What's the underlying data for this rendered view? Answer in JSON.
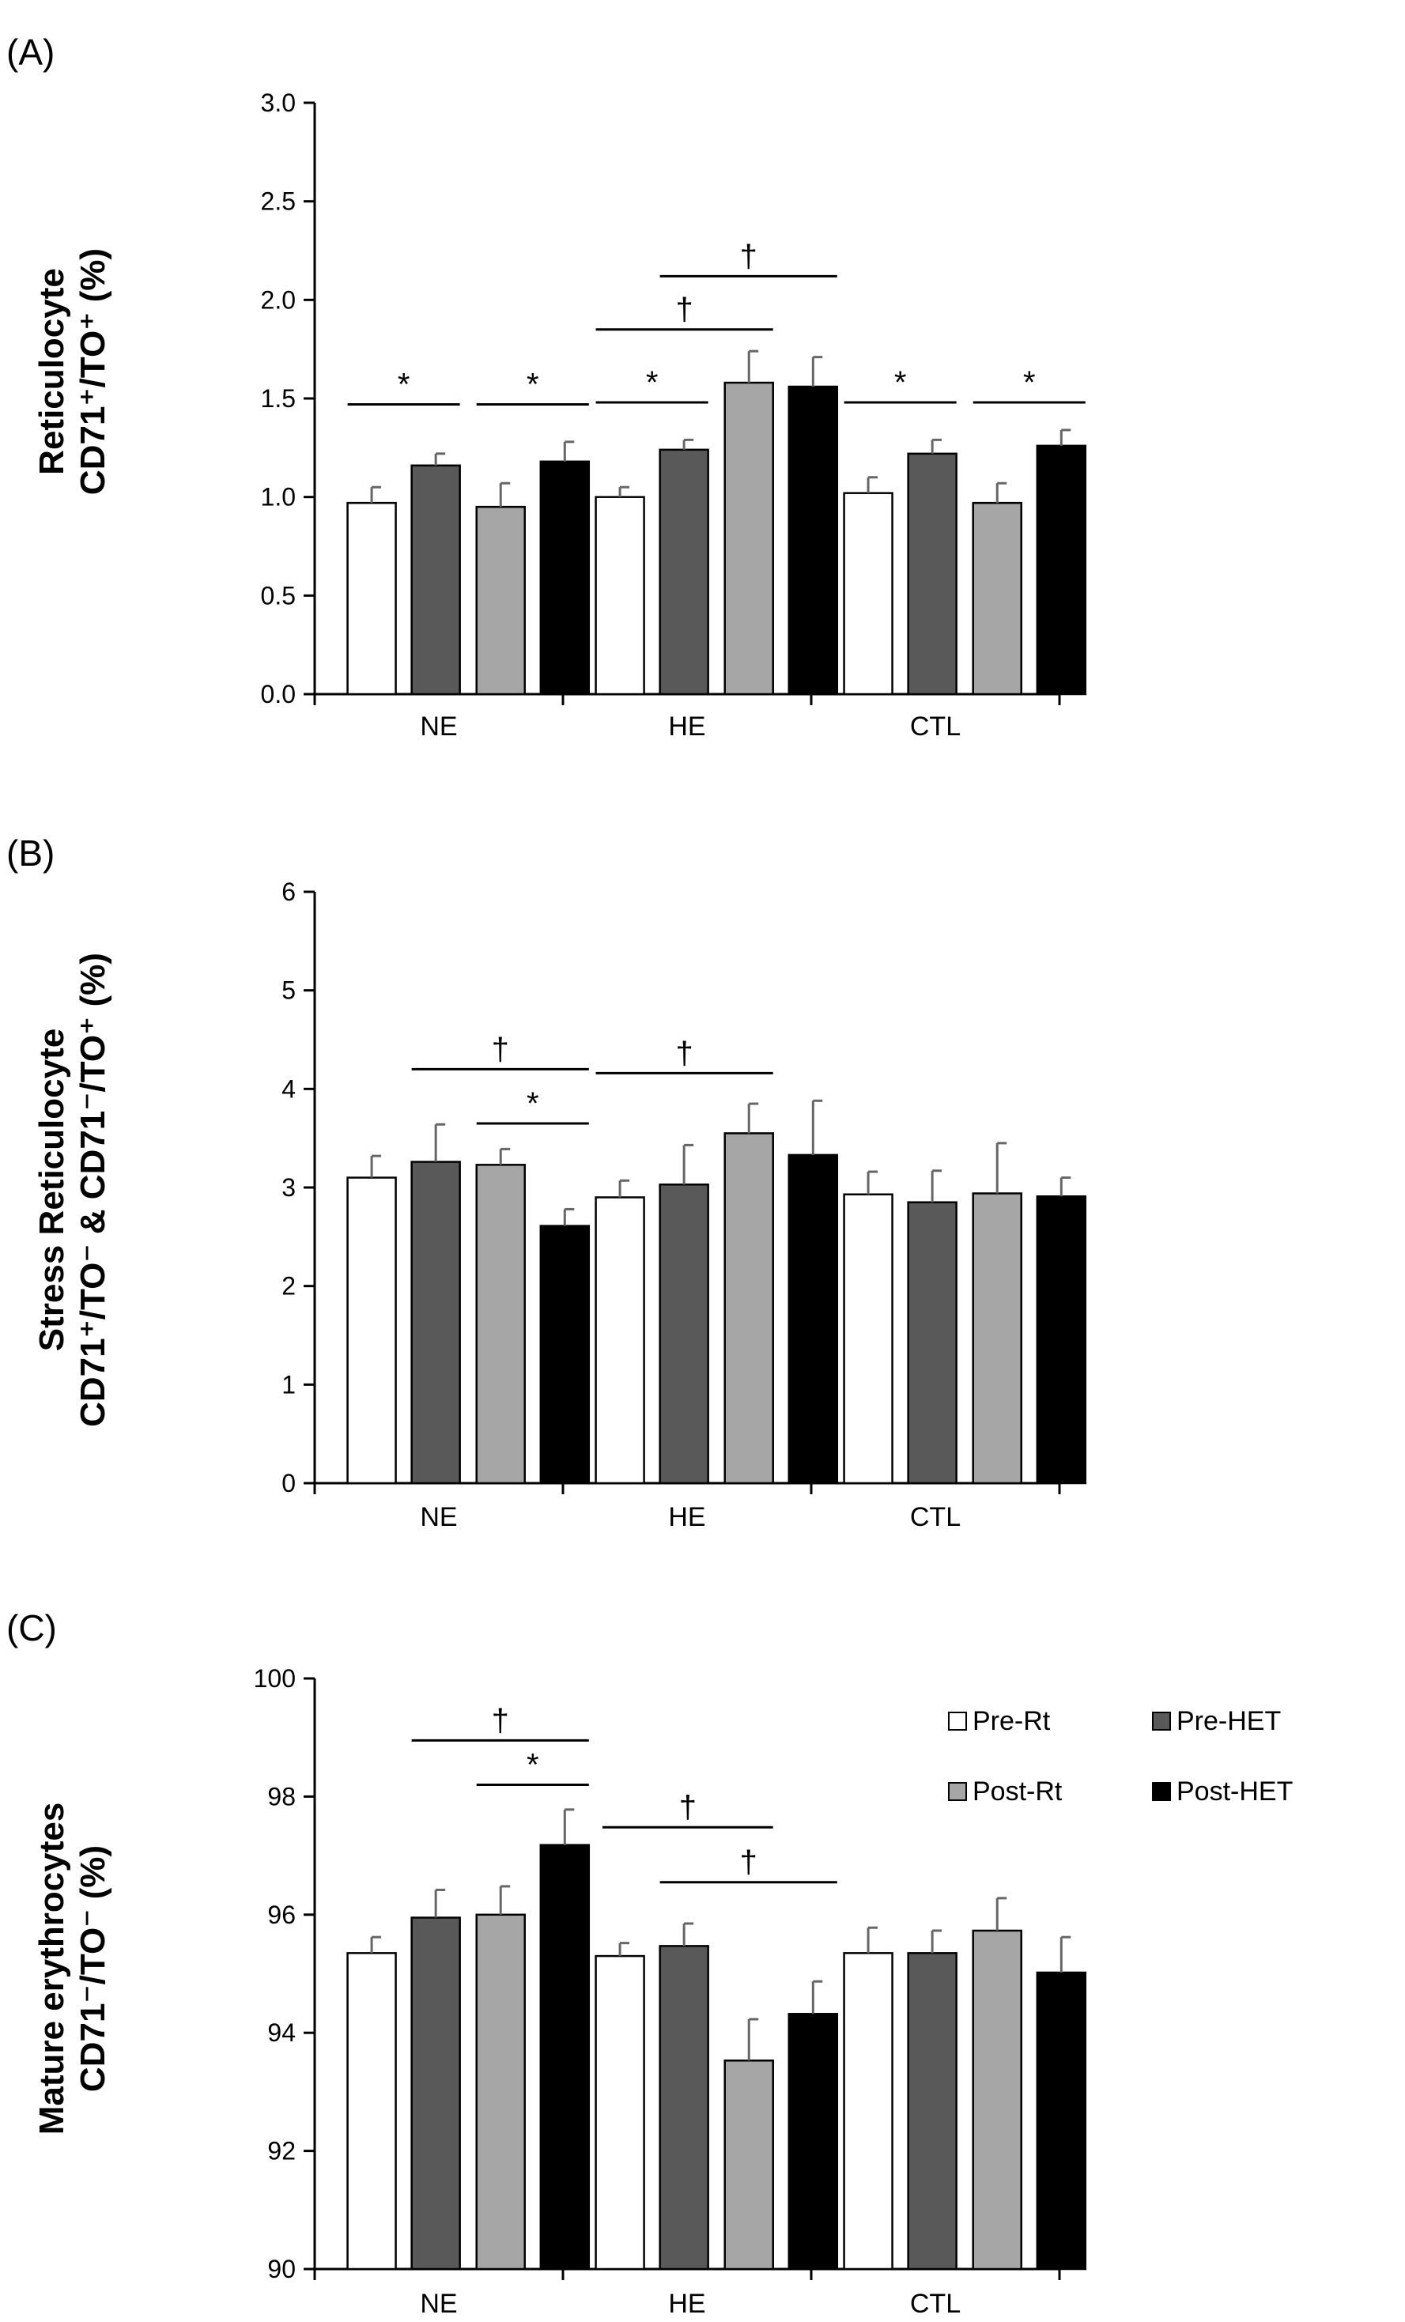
{
  "colors": {
    "Pre-Rt": "#ffffff",
    "Pre-HET": "#595959",
    "Post-Rt": "#a6a6a6",
    "Post-HET": "#000000",
    "axis": "#000000"
  },
  "chart_data": [
    {
      "type": "bar",
      "panel_label": "(A)",
      "ylabel_line1": "Reticulocyte",
      "ylabel_line2": "CD71⁺/TO⁺ (%)",
      "categories": [
        "NE",
        "HE",
        "CTL"
      ],
      "ylim": [
        0,
        3
      ],
      "yticks": [
        "0.0",
        "0.5",
        "1.0",
        "1.5",
        "2.0",
        "2.5",
        "3.0"
      ],
      "series": [
        {
          "name": "Pre-Rt",
          "values": [
            0.97,
            1.0,
            1.02
          ],
          "errors": [
            0.08,
            0.05,
            0.08
          ]
        },
        {
          "name": "Pre-HET",
          "values": [
            1.16,
            1.24,
            1.22
          ],
          "errors": [
            0.06,
            0.05,
            0.07
          ]
        },
        {
          "name": "Post-Rt",
          "values": [
            0.95,
            1.58,
            0.97
          ],
          "errors": [
            0.12,
            0.16,
            0.1
          ]
        },
        {
          "name": "Post-HET",
          "values": [
            1.18,
            1.56,
            1.26
          ],
          "errors": [
            0.1,
            0.15,
            0.08
          ]
        }
      ],
      "annotations": [
        {
          "symbol": "*",
          "category": 0,
          "from": 0,
          "to": 1,
          "y": 1.47
        },
        {
          "symbol": "*",
          "category": 0,
          "from": 2,
          "to": 3,
          "y": 1.47
        },
        {
          "symbol": "*",
          "category": 1,
          "from": 0,
          "to": 1,
          "y": 1.48
        },
        {
          "symbol": "†",
          "category": 1,
          "from": 0,
          "to": 2,
          "y": 1.85
        },
        {
          "symbol": "†",
          "category": 1,
          "from": 1,
          "to": 3,
          "y": 2.12
        },
        {
          "symbol": "*",
          "category": 2,
          "from": 0,
          "to": 1,
          "y": 1.48
        },
        {
          "symbol": "*",
          "category": 2,
          "from": 2,
          "to": 3,
          "y": 1.48
        }
      ]
    },
    {
      "type": "bar",
      "panel_label": "(B)",
      "ylabel_line1": "Stress Reticulocyte",
      "ylabel_line2": "CD71⁺/TO⁻ & CD71⁻/TO⁺ (%)",
      "categories": [
        "NE",
        "HE",
        "CTL"
      ],
      "ylim": [
        0,
        6
      ],
      "yticks": [
        "0",
        "1",
        "2",
        "3",
        "4",
        "5",
        "6"
      ],
      "series": [
        {
          "name": "Pre-Rt",
          "values": [
            3.1,
            2.9,
            2.93
          ],
          "errors": [
            0.22,
            0.17,
            0.23
          ]
        },
        {
          "name": "Pre-HET",
          "values": [
            3.26,
            3.03,
            2.85
          ],
          "errors": [
            0.38,
            0.4,
            0.32
          ]
        },
        {
          "name": "Post-Rt",
          "values": [
            3.23,
            3.55,
            2.94
          ],
          "errors": [
            0.16,
            0.3,
            0.51
          ]
        },
        {
          "name": "Post-HET",
          "values": [
            2.61,
            3.33,
            2.91
          ],
          "errors": [
            0.17,
            0.55,
            0.19
          ]
        }
      ],
      "annotations": [
        {
          "symbol": "†",
          "category": 0,
          "from": 1,
          "to": 3,
          "y": 4.2
        },
        {
          "symbol": "*",
          "category": 0,
          "from": 2,
          "to": 3,
          "y": 3.65
        },
        {
          "symbol": "†",
          "category": 1,
          "from": 0,
          "to": 2,
          "y": 4.16
        }
      ]
    },
    {
      "type": "bar",
      "panel_label": "(C)",
      "ylabel_line1": "Mature erythrocytes",
      "ylabel_line2": "CD71⁻/TO⁻ (%)",
      "categories": [
        "NE",
        "HE",
        "CTL"
      ],
      "ylim": [
        90,
        100
      ],
      "yticks": [
        "90",
        "92",
        "94",
        "96",
        "98",
        "100"
      ],
      "series": [
        {
          "name": "Pre-Rt",
          "values": [
            95.35,
            95.3,
            95.35
          ],
          "errors": [
            0.27,
            0.22,
            0.43
          ]
        },
        {
          "name": "Pre-HET",
          "values": [
            95.95,
            95.47,
            95.35
          ],
          "errors": [
            0.47,
            0.38,
            0.38
          ]
        },
        {
          "name": "Post-Rt",
          "values": [
            96.0,
            93.53,
            95.73
          ],
          "errors": [
            0.48,
            0.7,
            0.55
          ]
        },
        {
          "name": "Post-HET",
          "values": [
            97.18,
            94.32,
            95.02
          ],
          "errors": [
            0.6,
            0.55,
            0.6
          ]
        }
      ],
      "legend": {
        "position": "top-right",
        "entries": [
          "Pre-Rt",
          "Pre-HET",
          "Post-Rt",
          "Post-HET"
        ]
      },
      "annotations": [
        {
          "symbol": "†",
          "category": 0,
          "from": 1,
          "to": 3,
          "y": 98.95
        },
        {
          "symbol": "*",
          "category": 0,
          "from": 2,
          "to": 3,
          "y": 98.2
        },
        {
          "symbol": "†",
          "category": 1,
          "from": -0.5,
          "to": 2,
          "y": 97.48
        },
        {
          "symbol": "†",
          "category": 1,
          "from": 1,
          "to": 3,
          "y": 96.55
        }
      ]
    }
  ]
}
